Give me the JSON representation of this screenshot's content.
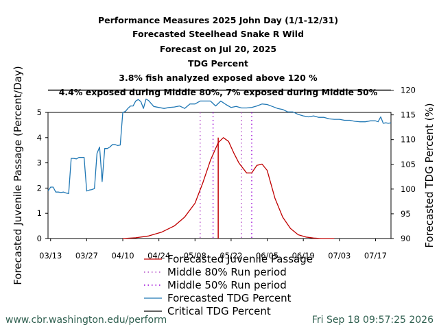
{
  "chart_data": {
    "type": "line",
    "title_lines": [
      "Performance Measures 2025 John Day (1/1-12/31)",
      "Forecasted Steelhead Snake R Wild",
      "Forecast on Jul 20, 2025",
      "TDG Percent",
      "3.8% fish analyzed exposed above 120 %",
      "4.4% exposed during Middle 80%, 7% exposed during Middle 50%"
    ],
    "ylabel_left": "Forecasted Juvenile Passage (Percent/Day)",
    "ylabel_right": "Forecasted TDG Percent (%)",
    "x_tick_labels": [
      "03/13",
      "03/27",
      "04/10",
      "04/24",
      "05/08",
      "05/22",
      "06/05",
      "06/19",
      "07/03",
      "07/17"
    ],
    "y_left_ticks": [
      "0",
      "1",
      "2",
      "3",
      "4",
      "5"
    ],
    "y_right_ticks": [
      "90",
      "95",
      "100",
      "105",
      "110",
      "115",
      "120"
    ],
    "ylim_left": [
      0,
      5
    ],
    "ylim_right": [
      90,
      115.5
    ],
    "xlim": [
      "03/12",
      "07/23"
    ],
    "grid": false,
    "legend_position": "bottom",
    "legend": [
      {
        "label": "Forecasted Juvenile Passage",
        "color": "#c00000",
        "style": "solid"
      },
      {
        "label": "Middle 80% Run period",
        "color": "#b44fc8",
        "style": "dotted"
      },
      {
        "label": "Middle 50% Run period",
        "color": "#9a00d6",
        "style": "dotted"
      },
      {
        "label": "Forecasted TDG Percent",
        "color": "#1f77b4",
        "style": "solid"
      },
      {
        "label": "Critical TDG Percent",
        "color": "#000000",
        "style": "solid"
      }
    ],
    "series": [
      {
        "name": "Forecasted Juvenile Passage",
        "axis": "left",
        "color": "#c00000",
        "x": [
          "04/10",
          "04/15",
          "04/20",
          "04/25",
          "04/30",
          "05/04",
          "05/08",
          "05/11",
          "05/14",
          "05/17",
          "05/19",
          "05/21",
          "05/23",
          "05/25",
          "05/28",
          "05/30",
          "06/01",
          "06/03",
          "06/05",
          "06/08",
          "06/11",
          "06/14",
          "06/17",
          "06/20",
          "06/23",
          "06/26",
          "07/01"
        ],
        "values": [
          0.0,
          0.03,
          0.1,
          0.25,
          0.5,
          0.85,
          1.4,
          2.2,
          3.1,
          3.8,
          4.0,
          3.85,
          3.4,
          3.0,
          2.6,
          2.6,
          2.9,
          2.95,
          2.7,
          1.6,
          0.85,
          0.4,
          0.15,
          0.06,
          0.02,
          0.0,
          0.0
        ]
      },
      {
        "name": "Forecasted TDG Percent",
        "axis": "right",
        "color": "#1f77b4",
        "x": [
          "03/12",
          "03/13",
          "03/14",
          "03/15",
          "03/16",
          "03/17",
          "03/18",
          "03/19",
          "03/20",
          "03/21",
          "03/22",
          "03/23",
          "03/24",
          "03/25",
          "03/26",
          "03/27",
          "03/28",
          "03/29",
          "03/30",
          "03/31",
          "04/01",
          "04/02",
          "04/03",
          "04/04",
          "04/05",
          "04/06",
          "04/07",
          "04/08",
          "04/09",
          "04/10",
          "04/11",
          "04/12",
          "04/13",
          "04/14",
          "04/15",
          "04/16",
          "04/17",
          "04/18",
          "04/19",
          "04/20",
          "04/22",
          "04/24",
          "04/26",
          "04/28",
          "04/30",
          "05/02",
          "05/04",
          "05/06",
          "05/08",
          "05/10",
          "05/12",
          "05/14",
          "05/15",
          "05/16",
          "05/17",
          "05/18",
          "05/20",
          "05/22",
          "05/24",
          "05/26",
          "05/28",
          "05/30",
          "06/01",
          "06/03",
          "06/05",
          "06/07",
          "06/09",
          "06/11",
          "06/13",
          "06/15",
          "06/17",
          "06/19",
          "06/21",
          "06/23",
          "06/25",
          "06/27",
          "06/29",
          "07/01",
          "07/03",
          "07/05",
          "07/07",
          "07/09",
          "07/11",
          "07/13",
          "07/15",
          "07/17",
          "07/18",
          "07/19",
          "07/20",
          "07/21",
          "07/22",
          "07/23"
        ],
        "values": [
          99.6,
          100.4,
          100.4,
          99.4,
          99.4,
          99.3,
          99.4,
          99.2,
          99.1,
          106.2,
          106.2,
          106.1,
          106.4,
          106.4,
          106.4,
          99.6,
          99.8,
          99.9,
          100.1,
          107.2,
          108.5,
          101.5,
          108.2,
          108.2,
          108.5,
          109.0,
          109.0,
          108.8,
          108.9,
          115.5,
          115.7,
          116.3,
          116.8,
          116.8,
          117.8,
          118.1,
          117.7,
          116.3,
          118.2,
          117.9,
          116.7,
          116.5,
          116.3,
          116.5,
          116.6,
          116.8,
          116.3,
          117.2,
          117.2,
          117.8,
          117.8,
          117.8,
          117.3,
          116.8,
          117.3,
          117.8,
          117.1,
          116.5,
          116.7,
          116.4,
          116.4,
          116.5,
          116.8,
          117.2,
          117.1,
          116.7,
          116.3,
          116.1,
          115.6,
          115.6,
          115.1,
          114.8,
          114.6,
          114.8,
          114.5,
          114.5,
          114.2,
          114.1,
          114.1,
          113.9,
          113.9,
          113.7,
          113.6,
          113.6,
          113.8,
          113.8,
          113.6,
          114.6,
          113.3,
          113.4,
          113.3,
          113.4
        ]
      }
    ],
    "critical_tdg": 120,
    "middle_80_period": [
      "05/10",
      "05/26"
    ],
    "middle_50_period": [
      "05/15",
      "05/30"
    ],
    "passage_marker": "05/17"
  },
  "footer": {
    "url": "www.cbr.washington.edu/perform",
    "timestamp": "Fri Sep 18 09:57:25 2026"
  },
  "colors": {
    "passage": "#c00000",
    "tdg": "#1f77b4",
    "mid80": "#b44fc8",
    "mid50": "#9a00d6",
    "critical": "#000000",
    "footer": "#2f5f4f"
  }
}
